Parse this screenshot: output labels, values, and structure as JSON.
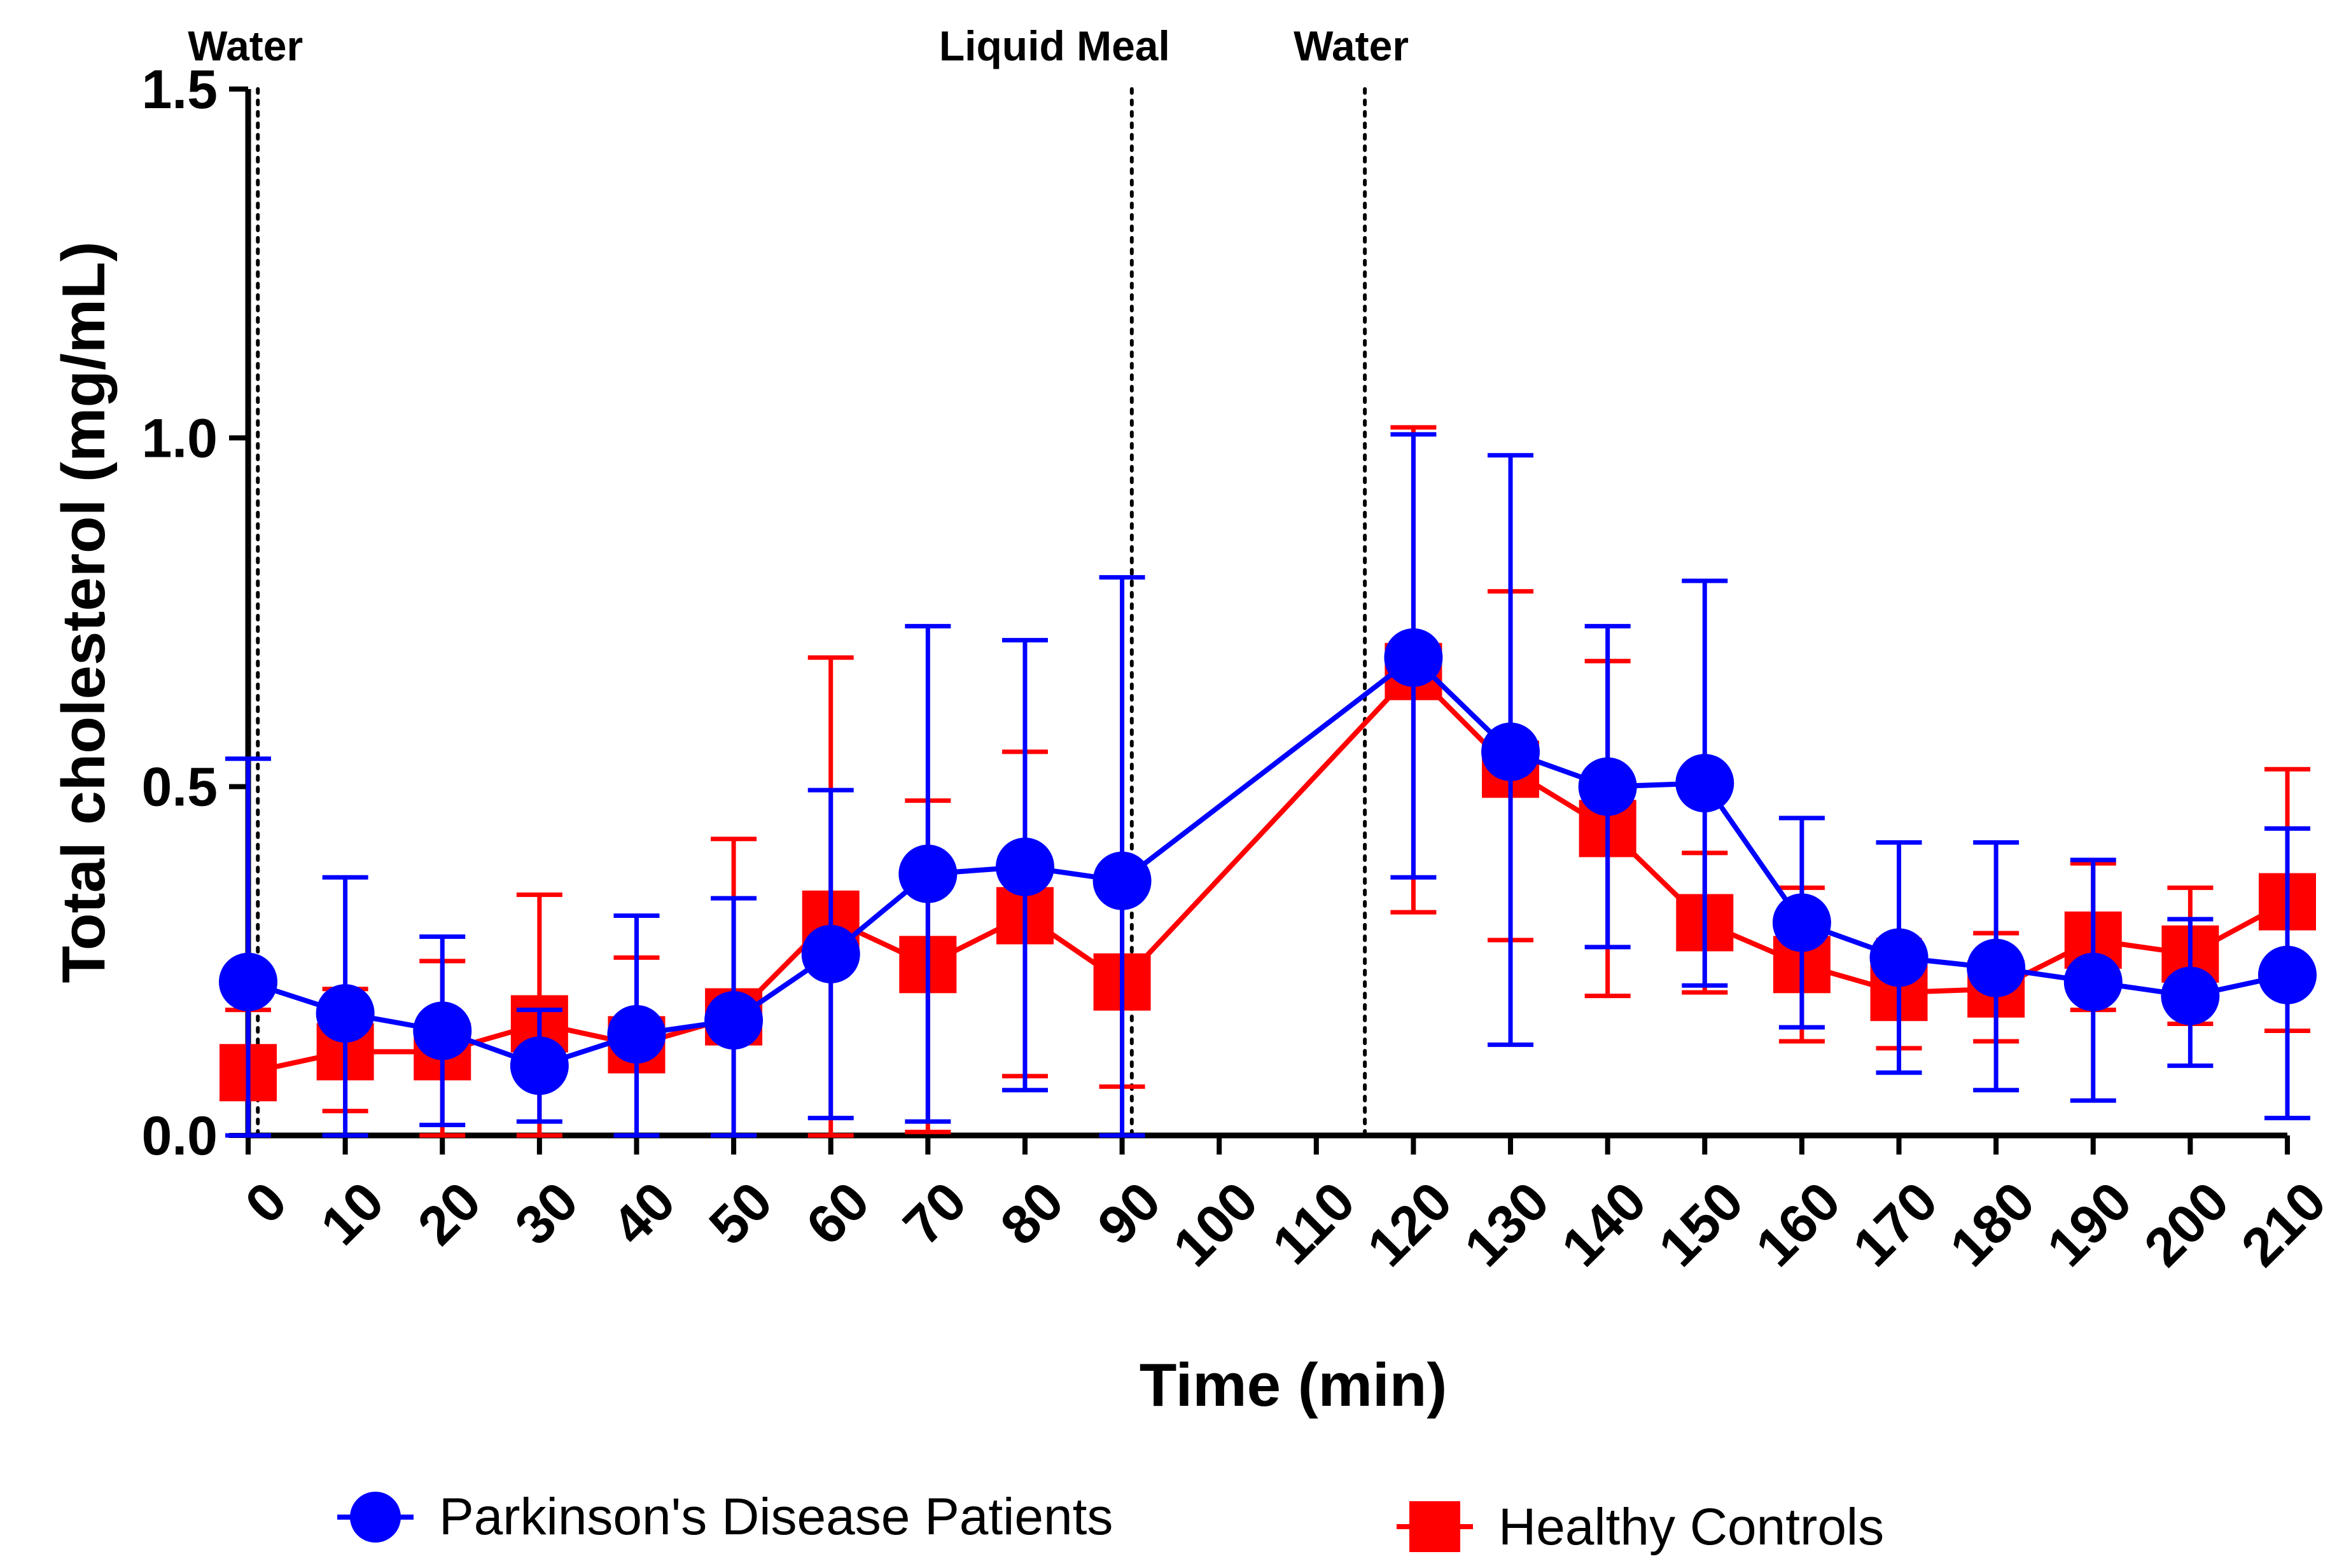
{
  "chart_data": {
    "type": "line",
    "title": "",
    "xlabel": "Time (min)",
    "ylabel": "Total cholesterol (mg/mL)",
    "xlim": [
      0,
      210
    ],
    "ylim": [
      0,
      1.5
    ],
    "x_ticks": [
      0,
      10,
      20,
      30,
      40,
      50,
      60,
      70,
      80,
      90,
      100,
      110,
      120,
      130,
      140,
      150,
      160,
      170,
      180,
      190,
      200,
      210
    ],
    "x_tick_labels": [
      "0",
      "10",
      "20",
      "30",
      "40",
      "50",
      "60",
      "70",
      "80",
      "90",
      "100",
      "110",
      "120",
      "130",
      "140",
      "150",
      "160",
      "170",
      "180",
      "190",
      "200",
      "210"
    ],
    "y_ticks": [
      0,
      0.5,
      1.0,
      1.5
    ],
    "y_tick_labels": [
      "0.0",
      "0.5",
      "1.0",
      "1.5"
    ],
    "grid": false,
    "legend_position": "bottom",
    "events": [
      {
        "label": "Water",
        "x": 1
      },
      {
        "label": "Liquid Meal",
        "x": 91
      },
      {
        "label": "Water",
        "x": 115
      }
    ],
    "series": [
      {
        "name": "Parkinson's Disease Patients",
        "color": "#0000ff",
        "marker": "circle",
        "x": [
          0,
          10,
          20,
          30,
          40,
          50,
          60,
          70,
          80,
          90,
          120,
          130,
          140,
          150,
          160,
          170,
          180,
          190,
          200,
          210
        ],
        "values": [
          0.22,
          0.175,
          0.15,
          0.1,
          0.145,
          0.165,
          0.26,
          0.375,
          0.385,
          0.365,
          0.685,
          0.55,
          0.5,
          0.505,
          0.305,
          0.255,
          0.24,
          0.22,
          0.2,
          0.23
        ],
        "err_low": [
          0.0,
          0.0,
          0.015,
          0.02,
          0.0,
          0.0,
          0.025,
          0.02,
          0.065,
          0.0,
          0.37,
          0.13,
          0.27,
          0.215,
          0.155,
          0.09,
          0.065,
          0.05,
          0.1,
          0.025
        ],
        "err_high": [
          0.54,
          0.37,
          0.285,
          0.18,
          0.315,
          0.34,
          0.495,
          0.73,
          0.71,
          0.8,
          1.005,
          0.975,
          0.73,
          0.795,
          0.455,
          0.42,
          0.42,
          0.395,
          0.31,
          0.44
        ]
      },
      {
        "name": "Healthy Controls",
        "color": "#ff0000",
        "marker": "square",
        "x": [
          0,
          10,
          20,
          30,
          40,
          50,
          60,
          70,
          80,
          90,
          120,
          130,
          140,
          150,
          160,
          170,
          180,
          190,
          200,
          210
        ],
        "values": [
          0.09,
          0.12,
          0.12,
          0.16,
          0.13,
          0.17,
          0.31,
          0.245,
          0.315,
          0.22,
          0.665,
          0.525,
          0.44,
          0.305,
          0.245,
          0.205,
          0.21,
          0.28,
          0.26,
          0.335
        ],
        "err_low": [
          0.0,
          0.035,
          0.0,
          0.0,
          0.0,
          0.0,
          0.0,
          0.005,
          0.085,
          0.07,
          0.32,
          0.28,
          0.2,
          0.205,
          0.135,
          0.125,
          0.135,
          0.18,
          0.16,
          0.15
        ],
        "err_high": [
          0.18,
          0.21,
          0.25,
          0.345,
          0.255,
          0.425,
          0.685,
          0.48,
          0.55,
          0.38,
          1.015,
          0.78,
          0.68,
          0.405,
          0.355,
          0.28,
          0.29,
          0.39,
          0.355,
          0.525
        ]
      }
    ]
  }
}
